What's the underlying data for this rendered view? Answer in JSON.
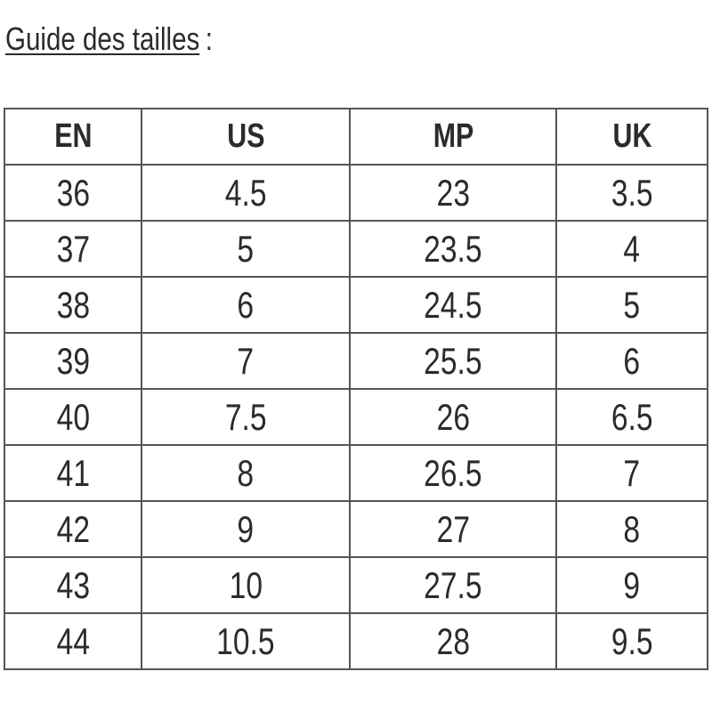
{
  "title": {
    "text": "Guide des tailles",
    "colon": ":"
  },
  "table": {
    "headers": [
      "EN",
      "US",
      "MP",
      "UK"
    ],
    "rows": [
      [
        "36",
        "4.5",
        "23",
        "3.5"
      ],
      [
        "37",
        "5",
        "23.5",
        "4"
      ],
      [
        "38",
        "6",
        "24.5",
        "5"
      ],
      [
        "39",
        "7",
        "25.5",
        "6"
      ],
      [
        "40",
        "7.5",
        "26",
        "6.5"
      ],
      [
        "41",
        "8",
        "26.5",
        "7"
      ],
      [
        "42",
        "9",
        "27",
        "8"
      ],
      [
        "43",
        "10",
        "27.5",
        "9"
      ],
      [
        "44",
        "10.5",
        "28",
        "9.5"
      ]
    ]
  }
}
